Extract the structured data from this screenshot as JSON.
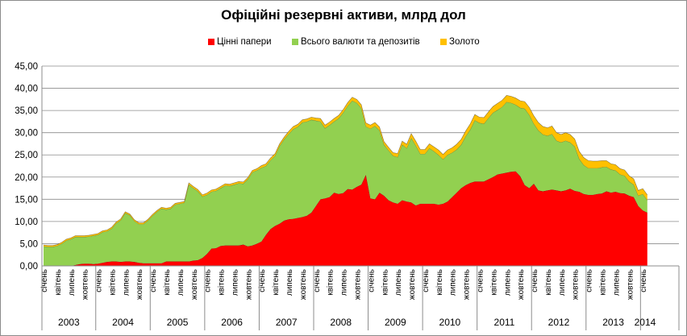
{
  "chart_data": {
    "type": "area",
    "stacked": true,
    "title": "Офіційні резервні активи, млрд дол",
    "legend_position": "top",
    "ylim": [
      0,
      45
    ],
    "y_ticks": [
      "0,00",
      "5,00",
      "10,00",
      "15,00",
      "20,00",
      "25,00",
      "30,00",
      "35,00",
      "40,00",
      "45,00"
    ],
    "grid": true,
    "month_labels": [
      "січень",
      "квітень",
      "липень",
      "жовтень"
    ],
    "years": [
      "2003",
      "2004",
      "2005",
      "2006",
      "2007",
      "2008",
      "2009",
      "2010",
      "2011",
      "2012",
      "2013",
      "2014"
    ],
    "x_label_months": [
      0,
      3,
      6,
      9
    ],
    "series": [
      {
        "name": "Цінні папери",
        "color": "#ff0000",
        "values": [
          0,
          0,
          0,
          0,
          0,
          0,
          0,
          0.2,
          0.4,
          0.5,
          0.5,
          0.4,
          0.5,
          0.7,
          0.9,
          1.0,
          1.0,
          0.9,
          1.0,
          1.0,
          0.9,
          0.7,
          0.6,
          0.6,
          0.6,
          0.6,
          0.6,
          1.0,
          1.0,
          1.0,
          1.0,
          1.0,
          1.0,
          1.2,
          1.3,
          1.8,
          2.7,
          3.9,
          4.0,
          4.5,
          4.6,
          4.6,
          4.6,
          4.6,
          4.8,
          4.4,
          4.6,
          5.0,
          5.5,
          7.0,
          8.3,
          9.0,
          9.5,
          10.2,
          10.5,
          10.6,
          10.8,
          11.0,
          11.3,
          12.0,
          13.5,
          15.0,
          15.2,
          15.5,
          16.5,
          16.2,
          16.4,
          17.3,
          17.2,
          17.8,
          18.3,
          20.5,
          15.2,
          15.0,
          16.5,
          15.8,
          14.8,
          14.3,
          14.0,
          14.8,
          14.5,
          14.3,
          13.6,
          14.0,
          14.0,
          14.0,
          14.0,
          13.8,
          14.0,
          14.5,
          15.5,
          16.5,
          17.5,
          18.2,
          18.7,
          19.0,
          19.0,
          19.0,
          19.5,
          20.0,
          20.6,
          20.8,
          21.0,
          21.2,
          21.3,
          20.2,
          18.2,
          17.5,
          18.5,
          17.0,
          16.8,
          17.0,
          17.2,
          17.0,
          16.8,
          17.0,
          17.4,
          16.9,
          16.7,
          16.2,
          16.0,
          16.0,
          16.2,
          16.3,
          16.8,
          16.5,
          16.7,
          16.4,
          16.3,
          15.8,
          15.5,
          13.5,
          12.5,
          12.0
        ]
      },
      {
        "name": "Всього валюти та депозитів",
        "color": "#92d050",
        "values": [
          4.4,
          4.3,
          4.3,
          4.5,
          5.0,
          5.7,
          6.0,
          6.3,
          6.1,
          6.0,
          6.1,
          6.4,
          6.5,
          6.9,
          6.9,
          7.4,
          8.6,
          9.4,
          10.9,
          10.4,
          9.2,
          8.7,
          8.8,
          9.6,
          10.7,
          11.6,
          12.3,
          11.7,
          11.9,
          12.8,
          13.0,
          13.2,
          17.3,
          16.3,
          15.5,
          13.8,
          13.3,
          12.8,
          12.9,
          13.0,
          13.5,
          13.4,
          13.7,
          14.0,
          13.7,
          15.1,
          16.5,
          16.5,
          16.6,
          15.5,
          15.5,
          15.8,
          17.5,
          18.3,
          19.2,
          20.2,
          20.5,
          21.3,
          21.2,
          20.9,
          19.2,
          17.5,
          15.8,
          16.2,
          16.0,
          17.0,
          18.1,
          18.7,
          20.0,
          18.9,
          17.2,
          10.9,
          15.7,
          16.5,
          14.0,
          11.5,
          11.2,
          10.5,
          10.5,
          12.5,
          12.0,
          14.5,
          13.5,
          11.2,
          11.2,
          12.5,
          11.8,
          11.2,
          10.0,
          10.5,
          10.0,
          9.7,
          9.8,
          11.0,
          12.0,
          13.8,
          13.2,
          13.0,
          13.8,
          14.5,
          14.5,
          15.0,
          15.9,
          15.5,
          15.0,
          15.4,
          17.2,
          16.5,
          13.5,
          13.5,
          12.8,
          12.3,
          12.5,
          11.2,
          11.0,
          11.2,
          10.4,
          10.0,
          7.4,
          6.5,
          6.0,
          6.0,
          5.8,
          5.9,
          5.5,
          5.2,
          4.8,
          4.2,
          4.0,
          3.2,
          2.8,
          2.3,
          3.7,
          2.8
        ]
      },
      {
        "name": "Золото",
        "color": "#ffc000",
        "values": [
          0.3,
          0.3,
          0.3,
          0.3,
          0.3,
          0.3,
          0.3,
          0.3,
          0.3,
          0.3,
          0.3,
          0.3,
          0.3,
          0.3,
          0.3,
          0.3,
          0.3,
          0.3,
          0.3,
          0.3,
          0.3,
          0.3,
          0.3,
          0.3,
          0.3,
          0.3,
          0.3,
          0.3,
          0.3,
          0.3,
          0.3,
          0.3,
          0.4,
          0.4,
          0.4,
          0.4,
          0.4,
          0.4,
          0.4,
          0.4,
          0.4,
          0.4,
          0.4,
          0.4,
          0.4,
          0.4,
          0.4,
          0.4,
          0.5,
          0.5,
          0.5,
          0.5,
          0.5,
          0.5,
          0.6,
          0.6,
          0.6,
          0.6,
          0.6,
          0.6,
          0.6,
          0.7,
          0.7,
          0.7,
          0.7,
          0.7,
          0.7,
          0.8,
          0.8,
          0.8,
          0.8,
          0.8,
          0.8,
          0.8,
          0.8,
          0.7,
          0.7,
          0.7,
          0.8,
          0.8,
          0.9,
          1.0,
          1.0,
          1.0,
          1.0,
          1.0,
          1.0,
          1.1,
          1.1,
          1.1,
          1.1,
          1.2,
          1.2,
          1.2,
          1.3,
          1.3,
          1.3,
          1.4,
          1.4,
          1.4,
          1.5,
          1.5,
          1.5,
          1.5,
          1.5,
          1.6,
          1.6,
          1.7,
          1.8,
          1.8,
          1.8,
          1.8,
          1.8,
          1.8,
          1.8,
          1.8,
          1.8,
          1.7,
          1.7,
          1.7,
          1.7,
          1.6,
          1.6,
          1.5,
          1.4,
          1.3,
          1.3,
          1.3,
          1.3,
          1.3,
          1.3,
          1.2,
          1.2,
          1.2
        ]
      }
    ]
  }
}
